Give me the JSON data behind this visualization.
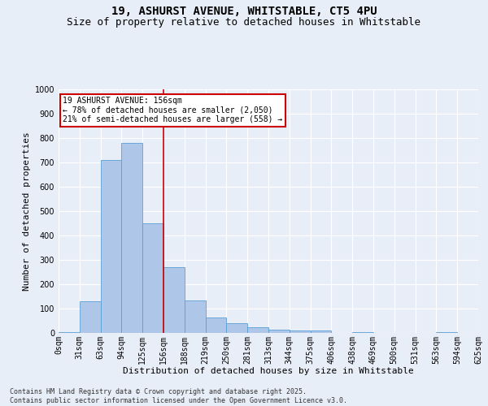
{
  "title_line1": "19, ASHURST AVENUE, WHITSTABLE, CT5 4PU",
  "title_line2": "Size of property relative to detached houses in Whitstable",
  "xlabel": "Distribution of detached houses by size in Whitstable",
  "ylabel": "Number of detached properties",
  "bar_values": [
    5,
    130,
    710,
    780,
    450,
    270,
    135,
    65,
    40,
    25,
    15,
    10,
    10,
    0,
    5,
    0,
    0,
    0,
    5,
    0
  ],
  "bin_labels": [
    "0sqm",
    "31sqm",
    "63sqm",
    "94sqm",
    "125sqm",
    "156sqm",
    "188sqm",
    "219sqm",
    "250sqm",
    "281sqm",
    "313sqm",
    "344sqm",
    "375sqm",
    "406sqm",
    "438sqm",
    "469sqm",
    "500sqm",
    "531sqm",
    "563sqm",
    "594sqm",
    "625sqm"
  ],
  "bar_color": "#aec6e8",
  "bar_edge_color": "#5a9fd4",
  "vline_x": 5,
  "vline_color": "#cc0000",
  "annotation_text": "19 ASHURST AVENUE: 156sqm\n← 78% of detached houses are smaller (2,050)\n21% of semi-detached houses are larger (558) →",
  "annotation_box_color": "#cc0000",
  "bg_color": "#e8eef8",
  "ylim": [
    0,
    1000
  ],
  "yticks": [
    0,
    100,
    200,
    300,
    400,
    500,
    600,
    700,
    800,
    900,
    1000
  ],
  "footnote": "Contains HM Land Registry data © Crown copyright and database right 2025.\nContains public sector information licensed under the Open Government Licence v3.0.",
  "title_fontsize": 10,
  "subtitle_fontsize": 9,
  "axis_label_fontsize": 8,
  "tick_fontsize": 7,
  "footnote_fontsize": 6
}
